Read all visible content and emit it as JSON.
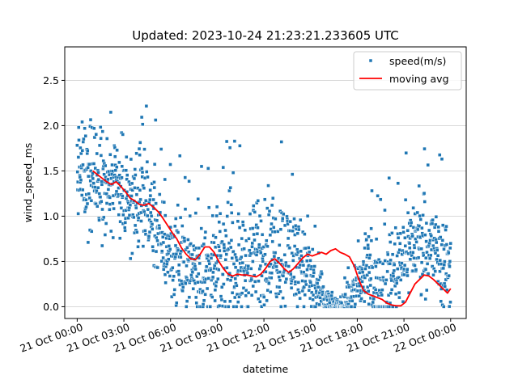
{
  "chart_data": {
    "type": "scatter",
    "title": "Updated: 2023-10-24 21:23:21.233605 UTC",
    "xlabel": "datetime",
    "ylabel": "wind_speed_ms",
    "x_tick_labels": [
      "21 Oct 00:00",
      "21 Oct 03:00",
      "21 Oct 06:00",
      "21 Oct 09:00",
      "21 Oct 12:00",
      "21 Oct 15:00",
      "21 Oct 18:00",
      "21 Oct 21:00",
      "22 Oct 00:00"
    ],
    "xlim_hours": [
      -0.8,
      25.0
    ],
    "ylim": [
      -0.13,
      2.87
    ],
    "y_ticks": [
      0.0,
      0.5,
      1.0,
      1.5,
      2.0,
      2.5
    ],
    "grid": "horizontal",
    "legend_position": "top-right",
    "series": [
      {
        "name": "speed(m/s)",
        "kind": "scatter",
        "color": "#1f77b4",
        "envelope_hours": [
          0.0,
          0.5,
          1.0,
          1.5,
          2.0,
          2.5,
          3.0,
          3.5,
          4.0,
          4.5,
          5.0,
          5.5,
          6.0,
          6.5,
          7.0,
          7.5,
          8.0,
          8.5,
          9.0,
          9.5,
          10.0,
          10.5,
          11.0,
          11.5,
          12.0,
          12.5,
          13.0,
          13.5,
          14.0,
          14.5,
          15.0,
          15.5,
          16.0,
          16.5,
          17.0,
          17.5,
          18.0,
          18.5,
          19.0,
          19.5,
          20.0,
          20.5,
          21.0,
          21.5,
          22.0,
          22.5,
          23.0,
          23.5,
          24.0
        ],
        "envelope_mean": [
          1.5,
          1.45,
          1.4,
          1.35,
          1.3,
          1.25,
          1.2,
          1.15,
          1.1,
          1.05,
          0.9,
          0.7,
          0.6,
          0.55,
          0.5,
          0.42,
          0.38,
          0.36,
          0.4,
          0.48,
          0.5,
          0.45,
          0.5,
          0.55,
          0.55,
          0.58,
          0.6,
          0.6,
          0.55,
          0.45,
          0.3,
          0.15,
          0.06,
          0.02,
          0.02,
          0.1,
          0.25,
          0.35,
          0.3,
          0.2,
          0.25,
          0.45,
          0.6,
          0.7,
          0.72,
          0.7,
          0.6,
          0.5,
          0.45
        ],
        "envelope_spread": [
          0.35,
          0.35,
          0.33,
          0.32,
          0.32,
          0.3,
          0.3,
          0.3,
          0.3,
          0.3,
          0.3,
          0.3,
          0.3,
          0.3,
          0.3,
          0.3,
          0.3,
          0.32,
          0.33,
          0.35,
          0.35,
          0.35,
          0.35,
          0.35,
          0.35,
          0.35,
          0.35,
          0.35,
          0.33,
          0.3,
          0.25,
          0.2,
          0.1,
          0.05,
          0.05,
          0.15,
          0.2,
          0.25,
          0.25,
          0.25,
          0.3,
          0.3,
          0.3,
          0.3,
          0.3,
          0.3,
          0.3,
          0.3,
          0.3
        ]
      },
      {
        "name": "moving avg",
        "kind": "line",
        "color": "#ff0000",
        "x_hours": [
          1.0,
          1.3,
          1.6,
          1.9,
          2.2,
          2.5,
          2.8,
          3.1,
          3.4,
          3.7,
          4.0,
          4.3,
          4.6,
          4.9,
          5.2,
          5.5,
          5.8,
          6.1,
          6.4,
          6.7,
          7.0,
          7.3,
          7.6,
          7.9,
          8.2,
          8.5,
          8.8,
          9.1,
          9.4,
          9.7,
          10.0,
          10.3,
          10.6,
          10.9,
          11.2,
          11.5,
          11.8,
          12.1,
          12.4,
          12.7,
          13.0,
          13.3,
          13.6,
          13.9,
          14.2,
          14.5,
          14.8,
          15.1,
          15.4,
          15.7,
          16.0,
          16.3,
          16.6,
          16.9,
          17.2,
          17.5,
          17.8,
          18.1,
          18.4,
          18.7,
          19.0,
          19.3,
          19.6,
          19.9,
          20.2,
          20.5,
          20.8,
          21.1,
          21.4,
          21.7,
          22.0,
          22.3,
          22.6,
          22.9,
          23.2,
          23.5,
          23.8,
          24.0
        ],
        "y": [
          1.5,
          1.46,
          1.42,
          1.38,
          1.35,
          1.38,
          1.33,
          1.27,
          1.2,
          1.17,
          1.13,
          1.12,
          1.14,
          1.1,
          1.05,
          0.98,
          0.9,
          0.82,
          0.75,
          0.65,
          0.58,
          0.53,
          0.52,
          0.58,
          0.66,
          0.66,
          0.6,
          0.5,
          0.42,
          0.36,
          0.34,
          0.36,
          0.35,
          0.35,
          0.34,
          0.33,
          0.36,
          0.42,
          0.5,
          0.53,
          0.48,
          0.42,
          0.38,
          0.42,
          0.48,
          0.54,
          0.58,
          0.56,
          0.58,
          0.6,
          0.58,
          0.62,
          0.64,
          0.6,
          0.58,
          0.55,
          0.45,
          0.3,
          0.18,
          0.14,
          0.12,
          0.1,
          0.08,
          0.04,
          0.02,
          0.01,
          0.01,
          0.05,
          0.15,
          0.25,
          0.3,
          0.35,
          0.34,
          0.3,
          0.25,
          0.2,
          0.15,
          0.2
        ]
      }
    ]
  }
}
